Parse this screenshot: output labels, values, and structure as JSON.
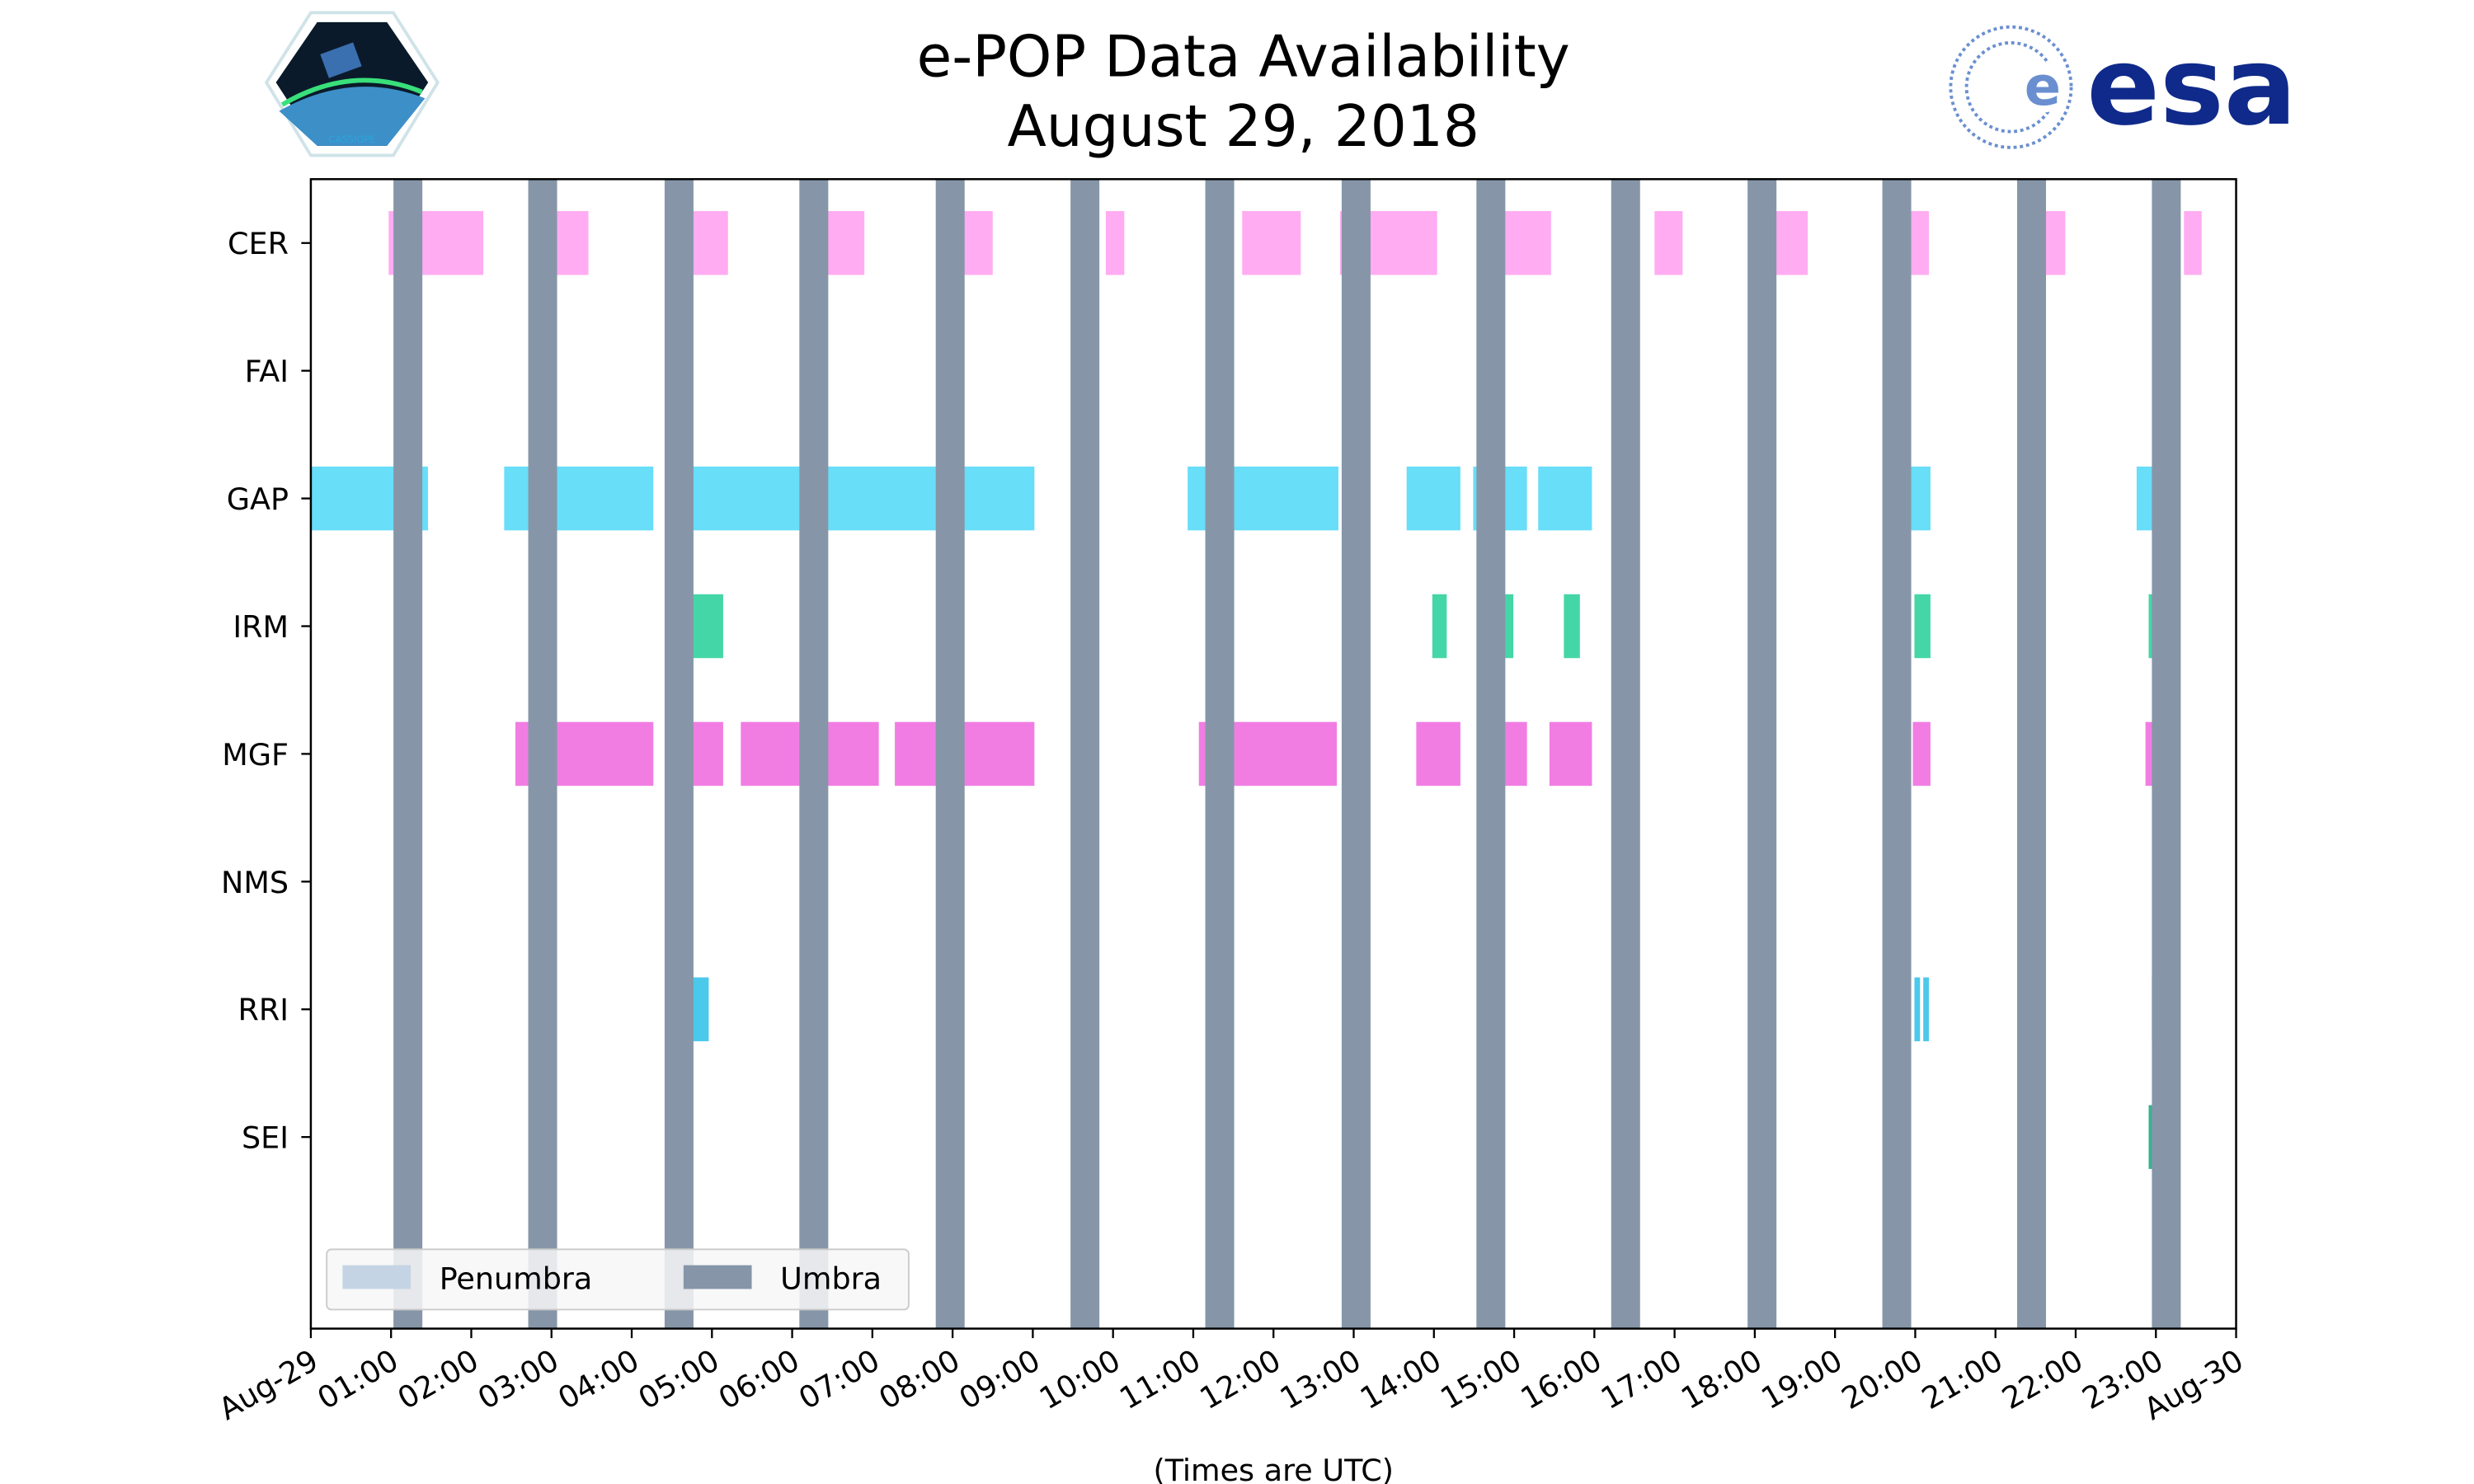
{
  "chart_data": {
    "type": "timeline",
    "title": "e-POP Data Availability",
    "subtitle": "August 29, 2018",
    "xlabel": "(Times are UTC)",
    "xlim_hours": [
      0,
      24
    ],
    "x_tick_labels": [
      "Aug-29",
      "01:00",
      "02:00",
      "03:00",
      "04:00",
      "05:00",
      "06:00",
      "07:00",
      "08:00",
      "09:00",
      "10:00",
      "11:00",
      "12:00",
      "13:00",
      "14:00",
      "15:00",
      "16:00",
      "17:00",
      "18:00",
      "19:00",
      "20:00",
      "21:00",
      "22:00",
      "23:00",
      "Aug-30"
    ],
    "categories": [
      "CER",
      "FAI",
      "GAP",
      "IRM",
      "MGF",
      "NMS",
      "RRI",
      "SEI"
    ],
    "ylim": [
      -0.5,
      8.5
    ],
    "legend": {
      "placement": "lower-left",
      "entries": [
        {
          "label": "Penumbra",
          "color": "#c5d4e4"
        },
        {
          "label": "Umbra",
          "color": "#8696a8"
        }
      ]
    },
    "umbra_duration_hours": 0.36,
    "umbra_start_hours": [
      1.03,
      2.71,
      4.41,
      6.09,
      7.79,
      9.47,
      11.15,
      12.85,
      14.53,
      16.21,
      17.91,
      19.59,
      21.27,
      22.95
    ],
    "series": [
      {
        "name": "CER",
        "color": "#ff9ef0",
        "intervals": [
          [
            0.97,
            2.15
          ],
          [
            2.91,
            3.46
          ],
          [
            4.61,
            5.2
          ],
          [
            6.43,
            6.9
          ],
          [
            8.13,
            8.5
          ],
          [
            9.91,
            10.14
          ],
          [
            11.61,
            12.34
          ],
          [
            12.83,
            14.04
          ],
          [
            14.61,
            15.46
          ],
          [
            16.75,
            17.1
          ],
          [
            18.19,
            18.66
          ],
          [
            19.89,
            20.17
          ],
          [
            21.61,
            21.87
          ],
          [
            23.35,
            23.57
          ]
        ]
      },
      {
        "name": "FAI",
        "color": "#888888",
        "intervals": []
      },
      {
        "name": "GAP",
        "color": "#4dd8f7",
        "intervals": [
          [
            0,
            1.46
          ],
          [
            2.41,
            4.27
          ],
          [
            4.61,
            9.02
          ],
          [
            10.93,
            12.81
          ],
          [
            13.66,
            14.33
          ],
          [
            14.49,
            15.16
          ],
          [
            15.3,
            15.97
          ],
          [
            19.85,
            20.19
          ],
          [
            22.76,
            23.15
          ]
        ]
      },
      {
        "name": "IRM",
        "color": "#25cf98",
        "intervals": [
          [
            4.74,
            5.14
          ],
          [
            13.98,
            14.16
          ],
          [
            14.81,
            14.99
          ],
          [
            15.62,
            15.82
          ],
          [
            19.99,
            20.19
          ],
          [
            22.91,
            23.15
          ]
        ]
      },
      {
        "name": "MGF",
        "color": "#ee66de",
        "intervals": [
          [
            2.55,
            4.27
          ],
          [
            4.74,
            5.14
          ],
          [
            5.36,
            7.08
          ],
          [
            7.28,
            9.02
          ],
          [
            11.07,
            12.79
          ],
          [
            13.78,
            14.33
          ],
          [
            14.61,
            15.16
          ],
          [
            15.44,
            15.97
          ],
          [
            19.97,
            20.19
          ],
          [
            22.87,
            23.15
          ]
        ]
      },
      {
        "name": "NMS",
        "color": "#888888",
        "intervals": []
      },
      {
        "name": "RRI",
        "color": "#2cc0e6",
        "intervals": [
          [
            4.76,
            4.96
          ],
          [
            19.99,
            20.06
          ],
          [
            20.1,
            20.17
          ],
          [
            22.95,
            23.09
          ]
        ]
      },
      {
        "name": "SEI",
        "color": "#16a37e",
        "intervals": [
          [
            22.91,
            23.15
          ]
        ]
      }
    ]
  },
  "logos": {
    "left": "CASSIOPE",
    "right": "esa"
  }
}
